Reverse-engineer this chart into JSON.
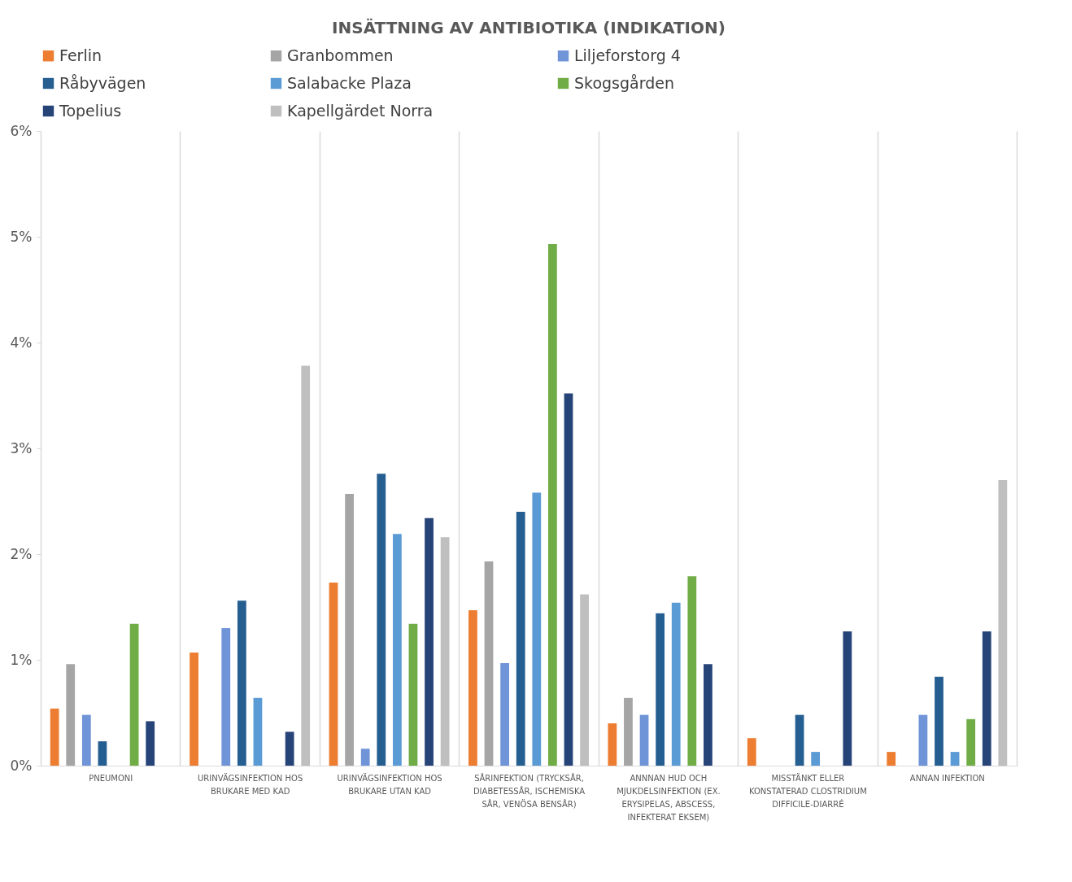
{
  "chart_data": {
    "type": "bar",
    "title": "INSÄTTNING AV ANTIBIOTIKA (INDIKATION)",
    "categories": [
      "PNEUMONI",
      "URINVÄGSINFEKTION HOS BRUKARE MED KAD",
      "URINVÄGSINFEKTION HOS BRUKARE UTAN KAD",
      "SÅRINFEKTION (TRYCKSÅR, DIABETESSÅR, ISCHEMISKA SÅR, VENÖSA BENSÅR)",
      "ANNNAN HUD OCH MJUKDELSINFEKTION (EX. ERYSIPELAS, ABSCESS, INFEKTERAT EKSEM)",
      "MISSTÄNKT ELLER KONSTATERAD CLOSTRIDIUM DIFFICILE-DIARRÉ",
      "ANNAN INFEKTION"
    ],
    "series": [
      {
        "name": "Ferlin",
        "color": "#ed7d31",
        "values": [
          0.54,
          1.07,
          1.73,
          1.47,
          0.4,
          0.26,
          0.13
        ]
      },
      {
        "name": "Granbommen",
        "color": "#a5a5a5",
        "values": [
          0.96,
          0,
          2.57,
          1.93,
          0.64,
          0,
          0
        ]
      },
      {
        "name": "Liljeforstorg 4",
        "color": "#7094d8",
        "values": [
          0.48,
          1.3,
          0.16,
          0.97,
          0.48,
          0,
          0.48
        ]
      },
      {
        "name": "Råbyvägen",
        "color": "#255e91",
        "values": [
          0.23,
          1.56,
          2.76,
          2.4,
          1.44,
          0.48,
          0.84
        ]
      },
      {
        "name": "Salabacke Plaza",
        "color": "#5b9bd5",
        "values": [
          0,
          0.64,
          2.19,
          2.58,
          1.54,
          0.13,
          0.13
        ]
      },
      {
        "name": "Skogsgården",
        "color": "#70ad47",
        "values": [
          1.34,
          0,
          1.34,
          4.93,
          1.79,
          0,
          0.44
        ]
      },
      {
        "name": "Topelius",
        "color": "#264478",
        "values": [
          0.42,
          0.32,
          2.34,
          3.52,
          0.96,
          1.27,
          1.27
        ]
      },
      {
        "name": "Kapellgärdet Norra",
        "color": "#bfbfbf",
        "values": [
          0,
          3.78,
          2.16,
          1.62,
          0,
          0,
          2.7
        ]
      }
    ],
    "ylim": [
      0,
      6
    ],
    "yticks": [
      {
        "value": 0,
        "label": "0%"
      },
      {
        "value": 1,
        "label": "1%"
      },
      {
        "value": 2,
        "label": "2%"
      },
      {
        "value": 3,
        "label": "3%"
      },
      {
        "value": 4,
        "label": "4%"
      },
      {
        "value": 5,
        "label": "5%"
      },
      {
        "value": 6,
        "label": "6%"
      }
    ],
    "grid": "x",
    "legend": "top"
  }
}
